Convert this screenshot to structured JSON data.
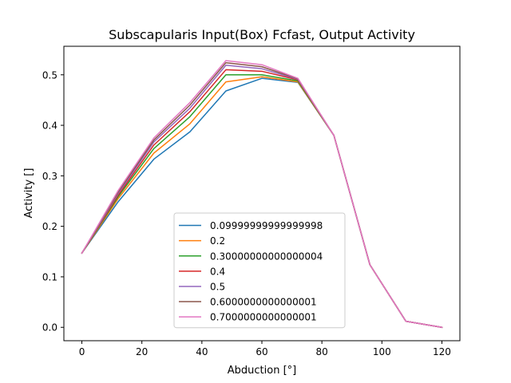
{
  "chart_data": {
    "type": "line",
    "title": "Subscapularis Input(Box) Fcfast, Output Activity",
    "xlabel": "Abduction [°]",
    "ylabel": "Activity []",
    "xlim": [
      -6,
      126
    ],
    "ylim": [
      -0.0265,
      0.5565
    ],
    "xticks": [
      0,
      20,
      40,
      60,
      80,
      100,
      120
    ],
    "xtick_labels": [
      "0",
      "20",
      "40",
      "60",
      "80",
      "100",
      "120"
    ],
    "yticks": [
      0.0,
      0.1,
      0.2,
      0.3,
      0.4,
      0.5
    ],
    "ytick_labels": [
      "0.0",
      "0.1",
      "0.2",
      "0.3",
      "0.4",
      "0.5"
    ],
    "grid": false,
    "legend_placement": "lower center",
    "x": [
      0,
      12,
      24,
      36,
      48,
      60,
      72,
      84,
      96,
      108,
      120
    ],
    "series": [
      {
        "name": "0.09999999999999998",
        "color": "#1f77b4",
        "values": [
          0.147,
          0.248,
          0.333,
          0.387,
          0.468,
          0.493,
          0.485,
          0.38,
          0.124,
          0.012,
          0.0
        ]
      },
      {
        "name": "0.2",
        "color": "#ff7f0e",
        "values": [
          0.147,
          0.254,
          0.345,
          0.403,
          0.486,
          0.496,
          0.486,
          0.38,
          0.124,
          0.012,
          0.0
        ]
      },
      {
        "name": "0.30000000000000004",
        "color": "#2ca02c",
        "values": [
          0.147,
          0.258,
          0.354,
          0.417,
          0.5,
          0.5,
          0.488,
          0.38,
          0.124,
          0.012,
          0.0
        ]
      },
      {
        "name": "0.4",
        "color": "#d62728",
        "values": [
          0.147,
          0.261,
          0.361,
          0.427,
          0.51,
          0.507,
          0.49,
          0.38,
          0.124,
          0.012,
          0.0
        ]
      },
      {
        "name": "0.5",
        "color": "#9467bd",
        "values": [
          0.147,
          0.264,
          0.367,
          0.434,
          0.519,
          0.512,
          0.491,
          0.38,
          0.124,
          0.012,
          0.0
        ]
      },
      {
        "name": "0.6000000000000001",
        "color": "#8c564b",
        "values": [
          0.147,
          0.267,
          0.371,
          0.44,
          0.524,
          0.516,
          0.492,
          0.38,
          0.124,
          0.012,
          0.0
        ]
      },
      {
        "name": "0.7000000000000001",
        "color": "#e377c2",
        "values": [
          0.147,
          0.27,
          0.375,
          0.445,
          0.528,
          0.52,
          0.493,
          0.38,
          0.124,
          0.012,
          0.0
        ]
      }
    ]
  }
}
